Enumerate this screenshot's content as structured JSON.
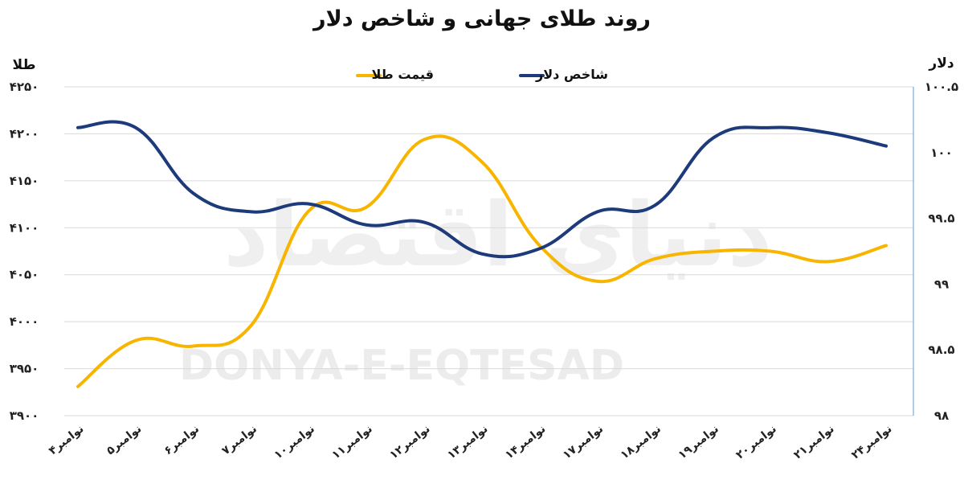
{
  "chart_data": {
    "type": "line",
    "title": "روند طلای جهانی و شاخص دلار",
    "categories": [
      "۴نوامبر",
      "۵نوامبر",
      "۶نوامبر",
      "۷نوامبر",
      "۱۰نوامبر",
      "۱۱نوامبر",
      "۱۲نوامبر",
      "۱۳نوامبر",
      "۱۴نوامبر",
      "۱۷نوامبر",
      "۱۸نوامبر",
      "۱۹نوامبر",
      "۲۰نوامبر",
      "۲۱نوامبر",
      "۲۴نوامبر"
    ],
    "left_axis": {
      "label": "طلا",
      "range": [
        3900,
        4250
      ],
      "ticks": [
        "۳۹۰۰",
        "۳۹۵۰",
        "۴۰۰۰",
        "۴۰۵۰",
        "۴۱۰۰",
        "۴۱۵۰",
        "۴۲۰۰",
        "۴۲۵۰"
      ]
    },
    "right_axis": {
      "label": "دلار",
      "range": [
        98,
        100.5
      ],
      "ticks": [
        "۹۸",
        "۹۸.۵",
        "۹۹",
        "۹۹.۵",
        "۱۰۰",
        "۱۰۰.۵"
      ]
    },
    "series": [
      {
        "name": "قیمت طلا",
        "axis": "left",
        "color": "#f7b500",
        "values": [
          3931,
          3980,
          3974,
          3996,
          4118,
          4122,
          4194,
          4170,
          4081,
          4043,
          4067,
          4075,
          4075,
          4064,
          4081
        ]
      },
      {
        "name": "شاخص دلار",
        "axis": "right",
        "color": "#1d3a7a",
        "values": [
          100.19,
          100.19,
          99.69,
          99.55,
          99.61,
          99.45,
          99.47,
          99.23,
          99.27,
          99.55,
          99.6,
          100.11,
          100.19,
          100.15,
          100.05
        ]
      }
    ],
    "grid": true,
    "legend": "top-center"
  },
  "watermark": {
    "latin": "DONYA-E-EQTESAD",
    "persian": "دنیای اقتصاد"
  }
}
